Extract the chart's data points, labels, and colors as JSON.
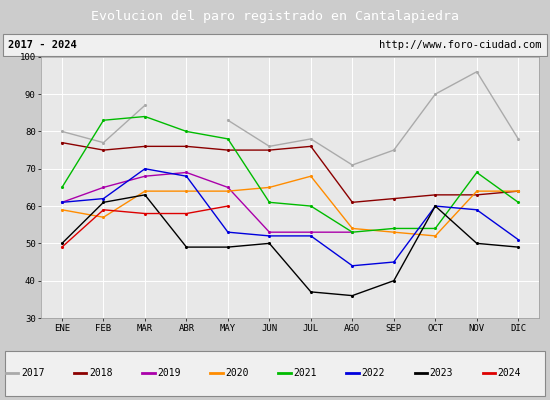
{
  "title": "Evolucion del paro registrado en Cantalapiedra",
  "subtitle_left": "2017 - 2024",
  "subtitle_right": "http://www.foro-ciudad.com",
  "months": [
    "ENE",
    "FEB",
    "MAR",
    "ABR",
    "MAY",
    "JUN",
    "JUL",
    "AGO",
    "SEP",
    "OCT",
    "NOV",
    "DIC"
  ],
  "series": {
    "2017": {
      "color": "#aaaaaa",
      "data": [
        80,
        77,
        87,
        null,
        83,
        76,
        78,
        71,
        75,
        90,
        96,
        78
      ]
    },
    "2018": {
      "color": "#8b0000",
      "data": [
        77,
        75,
        76,
        76,
        75,
        75,
        76,
        61,
        62,
        63,
        63,
        64
      ]
    },
    "2019": {
      "color": "#aa00aa",
      "data": [
        61,
        65,
        68,
        69,
        65,
        53,
        53,
        53,
        null,
        null,
        null,
        null
      ]
    },
    "2020": {
      "color": "#ff8c00",
      "data": [
        59,
        57,
        64,
        64,
        64,
        65,
        68,
        54,
        53,
        52,
        64,
        64
      ]
    },
    "2021": {
      "color": "#00bb00",
      "data": [
        65,
        83,
        84,
        80,
        78,
        61,
        60,
        53,
        54,
        54,
        69,
        61
      ]
    },
    "2022": {
      "color": "#0000dd",
      "data": [
        61,
        62,
        70,
        68,
        53,
        52,
        52,
        44,
        45,
        60,
        59,
        51
      ]
    },
    "2023": {
      "color": "#000000",
      "data": [
        50,
        61,
        63,
        49,
        49,
        50,
        37,
        36,
        40,
        60,
        50,
        49
      ]
    },
    "2024": {
      "color": "#dd0000",
      "data": [
        49,
        59,
        58,
        58,
        60,
        null,
        null,
        null,
        null,
        null,
        null,
        null
      ]
    }
  },
  "ylim": [
    30,
    100
  ],
  "yticks": [
    30,
    40,
    50,
    60,
    70,
    80,
    90,
    100
  ],
  "background_color": "#cccccc",
  "plot_bg_color": "#e8e8e8",
  "title_bg_color": "#5588cc",
  "title_color": "white",
  "header_bg_color": "#f0f0f0",
  "legend_bg_color": "#f0f0f0"
}
